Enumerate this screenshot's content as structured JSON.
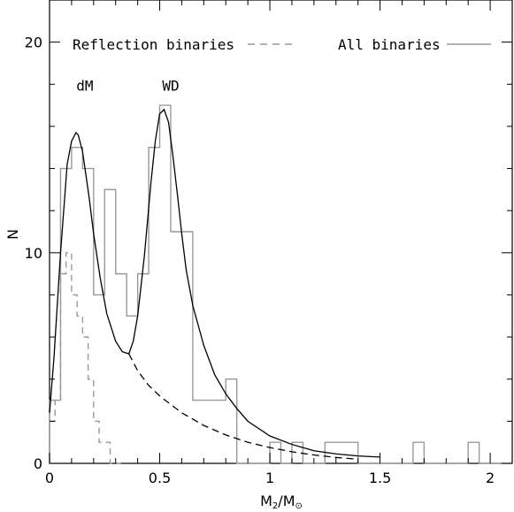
{
  "chart_data": {
    "type": "line",
    "xlabel": "M",
    "xlabel_sub1": "2",
    "xlabel_mid": "/M",
    "xlabel_sub2": "⊙",
    "ylabel": "N",
    "xlim": [
      0,
      2.1
    ],
    "ylim": [
      0,
      22
    ],
    "xticks": [
      0,
      0.5,
      1,
      1.5,
      2
    ],
    "xtick_labels": [
      "0",
      "0.5",
      "1",
      "1.5",
      "2"
    ],
    "yticks": [
      0,
      10,
      20
    ],
    "ytick_labels": [
      "0",
      "10",
      "20"
    ],
    "annotations": [
      {
        "text": "dM",
        "x": 0.16,
        "y": 17.7
      },
      {
        "text": "WD",
        "x": 0.55,
        "y": 17.7
      }
    ],
    "legend": {
      "placement": "top",
      "items": [
        {
          "label": "Reflection binaries",
          "style": "dashed",
          "color": "#999999"
        },
        {
          "label": "All binaries",
          "style": "solid",
          "color": "#999999"
        }
      ]
    },
    "series": [
      {
        "name": "All binaries",
        "kind": "histogram",
        "color": "#999999",
        "bin_width": 0.05,
        "bins_start": [
          0.0,
          0.05,
          0.1,
          0.15,
          0.2,
          0.25,
          0.3,
          0.35,
          0.4,
          0.45,
          0.5,
          0.55,
          0.6,
          0.65,
          0.7,
          0.75,
          0.8,
          0.85,
          0.9,
          0.95,
          1.0,
          1.05,
          1.1,
          1.15,
          1.2,
          1.25,
          1.3,
          1.35,
          1.4,
          1.45,
          1.5,
          1.55,
          1.6,
          1.65,
          1.7,
          1.75,
          1.8,
          1.85,
          1.9,
          1.95,
          2.0
        ],
        "counts": [
          3,
          14,
          15,
          14,
          8,
          13,
          9,
          7,
          9,
          15,
          17,
          11,
          11,
          3,
          3,
          3,
          4,
          0,
          0,
          0,
          1,
          0,
          1,
          0,
          0,
          1,
          1,
          1,
          0,
          0,
          0,
          0,
          0,
          1,
          0,
          0,
          0,
          0,
          1,
          0,
          0
        ]
      },
      {
        "name": "Reflection binaries",
        "kind": "histogram",
        "color": "#999999",
        "dashed": true,
        "bin_width": 0.025,
        "bins_start": [
          0.0,
          0.025,
          0.05,
          0.075,
          0.1,
          0.125,
          0.15,
          0.175,
          0.2,
          0.225,
          0.25,
          0.275,
          0.3
        ],
        "counts": [
          2,
          3,
          9,
          10,
          8,
          7,
          6,
          4,
          2,
          1,
          1,
          0,
          0
        ]
      },
      {
        "name": "fit-total",
        "kind": "curve",
        "style": "solid",
        "color": "#000000",
        "x": [
          0.0,
          0.02,
          0.05,
          0.08,
          0.1,
          0.12,
          0.13,
          0.15,
          0.18,
          0.2,
          0.23,
          0.26,
          0.3,
          0.33,
          0.36,
          0.38,
          0.4,
          0.43,
          0.46,
          0.48,
          0.5,
          0.52,
          0.54,
          0.56,
          0.58,
          0.6,
          0.62,
          0.65,
          0.7,
          0.75,
          0.8,
          0.85,
          0.9,
          1.0,
          1.1,
          1.2,
          1.3,
          1.4,
          1.5
        ],
        "y": [
          2.4,
          5.0,
          10.0,
          14.2,
          15.3,
          15.7,
          15.6,
          14.8,
          12.6,
          10.9,
          8.8,
          7.1,
          5.8,
          5.3,
          5.2,
          5.8,
          7.0,
          9.8,
          13.3,
          15.3,
          16.6,
          16.8,
          16.2,
          14.6,
          12.8,
          10.9,
          9.2,
          7.5,
          5.6,
          4.2,
          3.3,
          2.6,
          2.0,
          1.3,
          0.9,
          0.6,
          0.45,
          0.35,
          0.3
        ]
      },
      {
        "name": "fit-dM",
        "kind": "curve",
        "style": "dashed",
        "color": "#000000",
        "x": [
          0.36,
          0.4,
          0.45,
          0.5,
          0.6,
          0.7,
          0.8,
          0.9,
          1.0,
          1.1,
          1.2,
          1.3,
          1.4
        ],
        "y": [
          5.2,
          4.4,
          3.7,
          3.2,
          2.4,
          1.8,
          1.35,
          1.0,
          0.75,
          0.55,
          0.4,
          0.28,
          0.2
        ]
      }
    ]
  }
}
